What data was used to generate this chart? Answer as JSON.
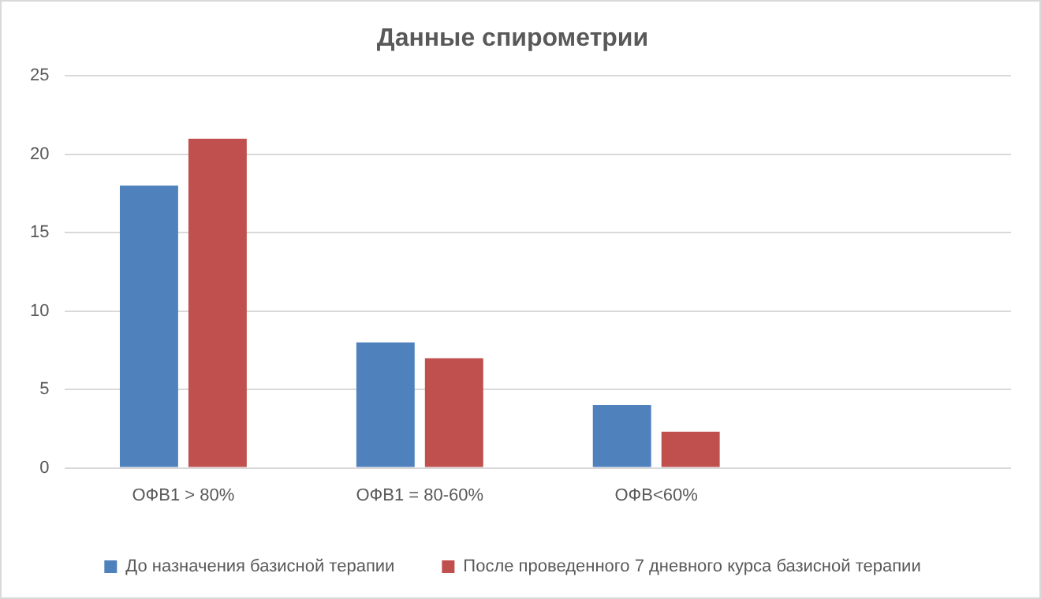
{
  "chart_data": {
    "type": "bar",
    "title": "Данные спирометрии",
    "categories": [
      "ОФВ1 > 80%",
      "ОФВ1 = 80-60%",
      "ОФВ<60%",
      null
    ],
    "series": [
      {
        "name": "До назначения базисной терапии",
        "color": "#4f81bd",
        "values": [
          18,
          8,
          4,
          null
        ]
      },
      {
        "name": "После проведенного 7 дневного курса базисной терапии",
        "color": "#c0504d",
        "values": [
          21,
          7,
          2.3,
          null
        ]
      }
    ],
    "ylim": [
      0,
      25
    ],
    "yticks": [
      0,
      5,
      10,
      15,
      20,
      25
    ],
    "grid": "y",
    "legend": "bottom"
  }
}
